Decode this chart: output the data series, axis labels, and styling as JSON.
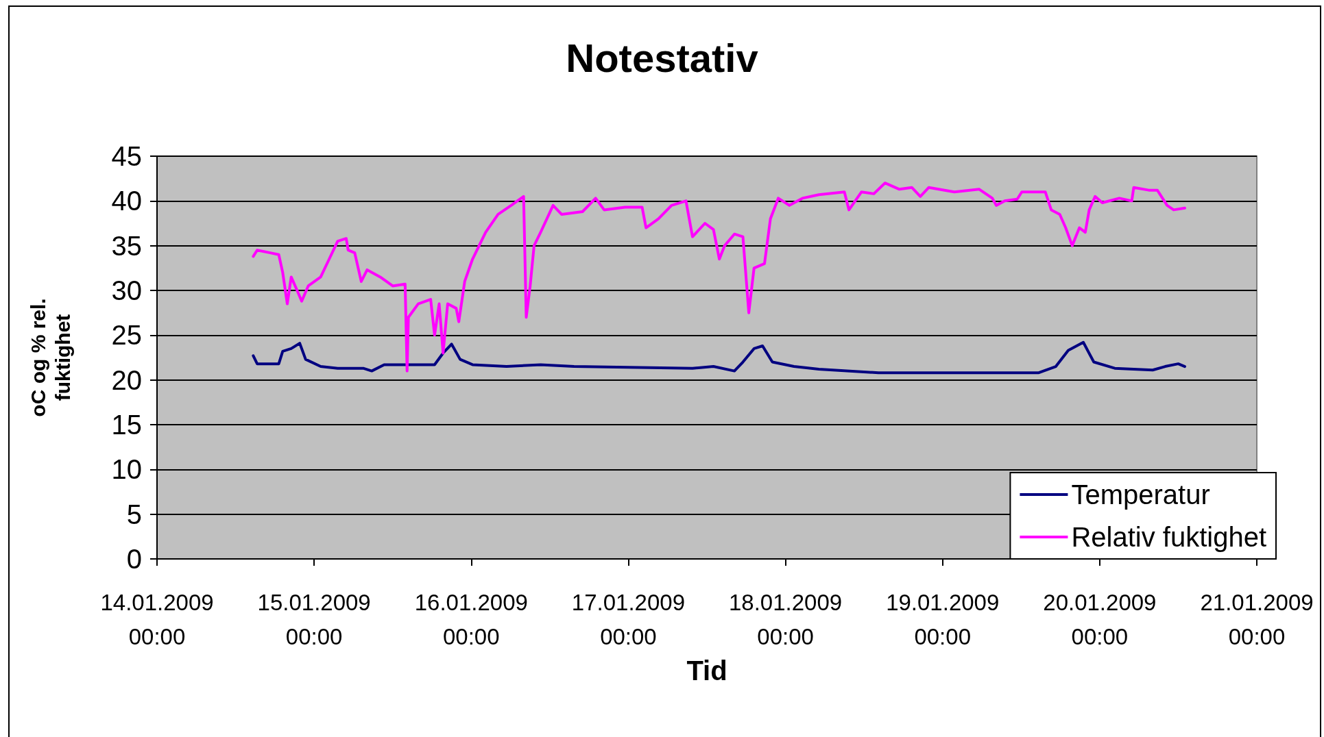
{
  "chart_data": {
    "type": "line",
    "title": "Notestativ",
    "xlabel": "Tid",
    "ylabel": "oC og % rel.\nfuktighet",
    "xlim": [
      "2009-01-14T00:00",
      "2009-01-21T00:00"
    ],
    "xticks": [
      {
        "value": "2009-01-14T00:00",
        "label": "14.01.2009\n00:00"
      },
      {
        "value": "2009-01-15T00:00",
        "label": "15.01.2009\n00:00"
      },
      {
        "value": "2009-01-16T00:00",
        "label": "16.01.2009\n00:00"
      },
      {
        "value": "2009-01-17T00:00",
        "label": "17.01.2009\n00:00"
      },
      {
        "value": "2009-01-18T00:00",
        "label": "18.01.2009\n00:00"
      },
      {
        "value": "2009-01-19T00:00",
        "label": "19.01.2009\n00:00"
      },
      {
        "value": "2009-01-20T00:00",
        "label": "20.01.2009\n00:00"
      },
      {
        "value": "2009-01-21T00:00",
        "label": "21.01.2009\n00:00"
      }
    ],
    "ylim": [
      0,
      45
    ],
    "yticks": [
      0,
      5,
      10,
      15,
      20,
      25,
      30,
      35,
      40,
      45
    ],
    "grid": "y",
    "legend": "bottom right",
    "marker": "none",
    "line_style": "solid",
    "series": [
      {
        "name": "Temperatur",
        "color": "#000080",
        "x": [
          "2009-01-14T14:42",
          "2009-01-14T15:18",
          "2009-01-14T18:36",
          "2009-01-14T19:12",
          "2009-01-14T20:30",
          "2009-01-14T21:48",
          "2009-01-14T22:42",
          "2009-01-15T01:00",
          "2009-01-15T03:36",
          "2009-01-15T07:30",
          "2009-01-15T08:48",
          "2009-01-15T10:42",
          "2009-01-15T18:24",
          "2009-01-15T19:42",
          "2009-01-15T21:00",
          "2009-01-15T22:18",
          "2009-01-16T00:12",
          "2009-01-16T05:24",
          "2009-01-16T10:36",
          "2009-01-16T15:42",
          "2009-01-17T09:48",
          "2009-01-17T13:00",
          "2009-01-17T16:12",
          "2009-01-17T17:30",
          "2009-01-17T19:12",
          "2009-01-17T20:30",
          "2009-01-17T22:00",
          "2009-01-18T01:18",
          "2009-01-18T05:06",
          "2009-01-18T14:12",
          "2009-01-19T14:42",
          "2009-01-19T17:18",
          "2009-01-19T19:12",
          "2009-01-19T21:30",
          "2009-01-19T23:06",
          "2009-01-20T02:18",
          "2009-01-20T08:06",
          "2009-01-20T10:00",
          "2009-01-20T12:00",
          "2009-01-20T13:00"
        ],
        "values": [
          22.7,
          21.8,
          21.8,
          23.2,
          23.5,
          24.1,
          22.3,
          21.5,
          21.3,
          21.3,
          21,
          21.7,
          21.7,
          23,
          24,
          22.3,
          21.7,
          21.5,
          21.7,
          21.5,
          21.3,
          21.5,
          21,
          22,
          23.5,
          23.8,
          22,
          21.5,
          21.2,
          20.8,
          20.8,
          21.5,
          23.3,
          24.2,
          22,
          21.3,
          21.1,
          21.5,
          21.8,
          21.5
        ]
      },
      {
        "name": "Relativ fuktighet",
        "color": "#ff00ff",
        "x": [
          "2009-01-14T14:42",
          "2009-01-14T15:18",
          "2009-01-14T17:18",
          "2009-01-14T18:36",
          "2009-01-14T19:12",
          "2009-01-14T19:54",
          "2009-01-14T20:30",
          "2009-01-14T21:24",
          "2009-01-14T22:06",
          "2009-01-14T23:06",
          "2009-01-15T01:00",
          "2009-01-15T02:18",
          "2009-01-15T03:36",
          "2009-01-15T04:54",
          "2009-01-15T05:12",
          "2009-01-15T06:12",
          "2009-01-15T07:12",
          "2009-01-15T08:06",
          "2009-01-15T10:06",
          "2009-01-15T12:00",
          "2009-01-15T13:54",
          "2009-01-15T14:12",
          "2009-01-15T14:24",
          "2009-01-15T15:54",
          "2009-01-15T17:48",
          "2009-01-15T18:24",
          "2009-01-15T19:06",
          "2009-01-15T19:42",
          "2009-01-15T20:24",
          "2009-01-15T21:42",
          "2009-01-15T22:06",
          "2009-01-15T23:00",
          "2009-01-16T00:12",
          "2009-01-16T02:12",
          "2009-01-16T04:06",
          "2009-01-16T06:06",
          "2009-01-16T08:00",
          "2009-01-16T08:24",
          "2009-01-16T09:00",
          "2009-01-16T09:36",
          "2009-01-16T10:36",
          "2009-01-16T12:30",
          "2009-01-16T13:48",
          "2009-01-16T17:00",
          "2009-01-16T19:00",
          "2009-01-16T20:18",
          "2009-01-16T23:30",
          "2009-01-17T02:06",
          "2009-01-17T02:42",
          "2009-01-17T04:36",
          "2009-01-17T06:36",
          "2009-01-17T08:48",
          "2009-01-17T09:48",
          "2009-01-17T11:42",
          "2009-01-17T13:00",
          "2009-01-17T13:54",
          "2009-01-17T14:42",
          "2009-01-17T16:12",
          "2009-01-17T17:30",
          "2009-01-17T18:24",
          "2009-01-17T19:12",
          "2009-01-17T20:48",
          "2009-01-17T21:42",
          "2009-01-17T22:54",
          "2009-01-18T00:36",
          "2009-01-18T02:36",
          "2009-01-18T05:06",
          "2009-01-18T09:00",
          "2009-01-18T09:42",
          "2009-01-18T11:36",
          "2009-01-18T13:30",
          "2009-01-18T15:12",
          "2009-01-18T17:24",
          "2009-01-18T19:18",
          "2009-01-18T20:36",
          "2009-01-18T21:54",
          "2009-01-19T01:48",
          "2009-01-19T05:36",
          "2009-01-19T07:36",
          "2009-01-19T08:12",
          "2009-01-19T09:30",
          "2009-01-19T11:24",
          "2009-01-19T12:06",
          "2009-01-19T15:42",
          "2009-01-19T16:36",
          "2009-01-19T17:54",
          "2009-01-19T18:48",
          "2009-01-19T19:48",
          "2009-01-19T20:54",
          "2009-01-19T21:48",
          "2009-01-19T22:24",
          "2009-01-19T23:18",
          "2009-01-20T00:24",
          "2009-01-20T03:00",
          "2009-01-20T04:54",
          "2009-01-20T05:12",
          "2009-01-20T07:30",
          "2009-01-20T08:48",
          "2009-01-20T10:18",
          "2009-01-20T11:18",
          "2009-01-20T13:00"
        ],
        "values": [
          33.8,
          34.5,
          34.2,
          34,
          32,
          28.5,
          31.5,
          30,
          28.8,
          30.5,
          31.5,
          33.5,
          35.5,
          35.8,
          34.5,
          34.2,
          31,
          32.3,
          31.5,
          30.5,
          30.7,
          21,
          27,
          28.5,
          29,
          25,
          28.5,
          23,
          28.5,
          28,
          26.5,
          31,
          33.5,
          36.5,
          38.5,
          39.5,
          40.5,
          27,
          30.5,
          35,
          36.5,
          39.5,
          38.5,
          38.8,
          40.3,
          39,
          39.3,
          39.3,
          37,
          38,
          39.5,
          40,
          36,
          37.5,
          36.8,
          33.5,
          35,
          36.3,
          36,
          27.5,
          32.5,
          33,
          38,
          40.3,
          39.5,
          40.3,
          40.7,
          41,
          39,
          41,
          40.8,
          42,
          41.3,
          41.5,
          40.5,
          41.5,
          41,
          41.3,
          40.3,
          39.5,
          40,
          40.2,
          41,
          41,
          39,
          38.5,
          37,
          35,
          37,
          36.5,
          39,
          40.5,
          39.8,
          40.3,
          40,
          41.5,
          41.2,
          41.2,
          39.5,
          39,
          39.2
        ]
      }
    ]
  }
}
